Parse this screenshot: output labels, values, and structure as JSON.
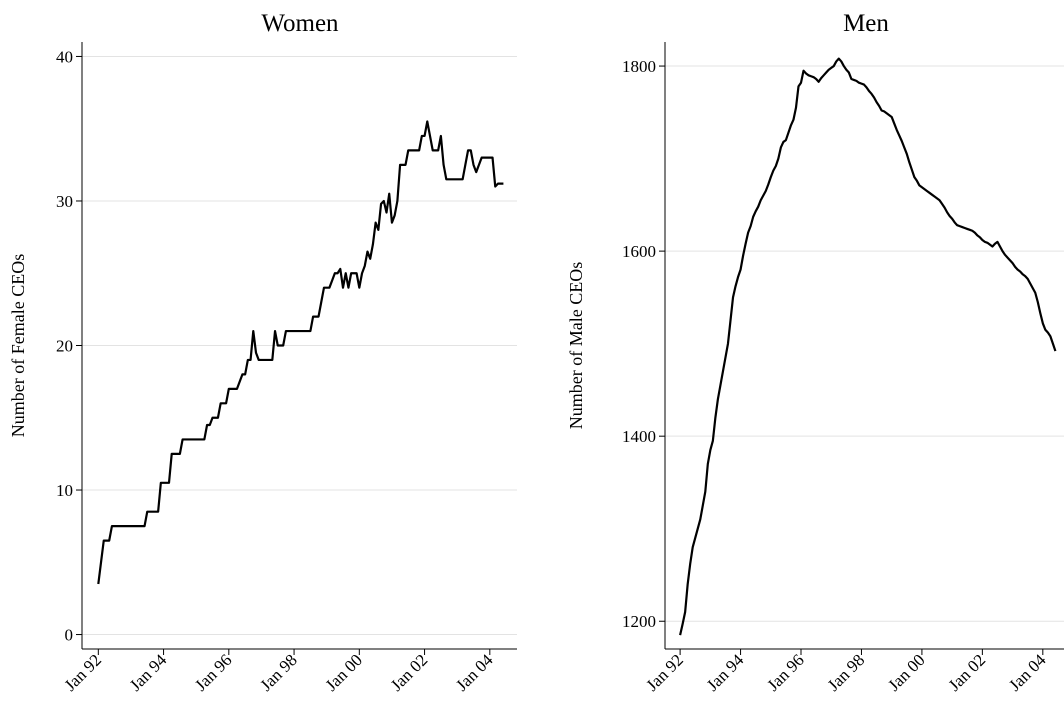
{
  "chart_data": [
    {
      "type": "line",
      "title": "Women",
      "y_label": "Number of Female CEOs",
      "x": [
        "1992-01",
        "1992-02",
        "1992-03",
        "1992-04",
        "1992-05",
        "1992-06",
        "1992-07",
        "1992-08",
        "1992-09",
        "1992-10",
        "1992-11",
        "1992-12",
        "1993-01",
        "1993-02",
        "1993-03",
        "1993-04",
        "1993-05",
        "1993-06",
        "1993-07",
        "1993-08",
        "1993-09",
        "1993-10",
        "1993-11",
        "1993-12",
        "1994-01",
        "1994-02",
        "1994-03",
        "1994-04",
        "1994-05",
        "1994-06",
        "1994-07",
        "1994-08",
        "1994-09",
        "1994-10",
        "1994-11",
        "1994-12",
        "1995-01",
        "1995-02",
        "1995-03",
        "1995-04",
        "1995-05",
        "1995-06",
        "1995-07",
        "1995-08",
        "1995-09",
        "1995-10",
        "1995-11",
        "1995-12",
        "1996-01",
        "1996-02",
        "1996-03",
        "1996-04",
        "1996-05",
        "1996-06",
        "1996-07",
        "1996-08",
        "1996-09",
        "1996-10",
        "1996-11",
        "1996-12",
        "1997-01",
        "1997-02",
        "1997-03",
        "1997-04",
        "1997-05",
        "1997-06",
        "1997-07",
        "1997-08",
        "1997-09",
        "1997-10",
        "1997-11",
        "1997-12",
        "1998-01",
        "1998-02",
        "1998-03",
        "1998-04",
        "1998-05",
        "1998-06",
        "1998-07",
        "1998-08",
        "1998-09",
        "1998-10",
        "1998-11",
        "1998-12",
        "1999-01",
        "1999-02",
        "1999-03",
        "1999-04",
        "1999-05",
        "1999-06",
        "1999-07",
        "1999-08",
        "1999-09",
        "1999-10",
        "1999-11",
        "1999-12",
        "2000-01",
        "2000-02",
        "2000-03",
        "2000-04",
        "2000-05",
        "2000-06",
        "2000-07",
        "2000-08",
        "2000-09",
        "2000-10",
        "2000-11",
        "2000-12",
        "2001-01",
        "2001-02",
        "2001-03",
        "2001-04",
        "2001-05",
        "2001-06",
        "2001-07",
        "2001-08",
        "2001-09",
        "2001-10",
        "2001-11",
        "2001-12",
        "2002-01",
        "2002-02",
        "2002-03",
        "2002-04",
        "2002-05",
        "2002-06",
        "2002-07",
        "2002-08",
        "2002-09",
        "2002-10",
        "2002-11",
        "2002-12",
        "2003-01",
        "2003-02",
        "2003-03",
        "2003-04",
        "2003-05",
        "2003-06",
        "2003-07",
        "2003-08",
        "2003-09",
        "2003-10",
        "2003-11",
        "2003-12",
        "2004-01",
        "2004-02",
        "2004-03",
        "2004-04",
        "2004-05",
        "2004-06"
      ],
      "series": [
        {
          "name": "Women",
          "color": "#000000",
          "values": [
            3.5,
            5,
            6.5,
            6.5,
            6.5,
            7.5,
            7.5,
            7.5,
            7.5,
            7.5,
            7.5,
            7.5,
            7.5,
            7.5,
            7.5,
            7.5,
            7.5,
            7.5,
            8.5,
            8.5,
            8.5,
            8.5,
            8.5,
            10.5,
            10.5,
            10.5,
            10.5,
            12.5,
            12.5,
            12.5,
            12.5,
            13.5,
            13.5,
            13.5,
            13.5,
            13.5,
            13.5,
            13.5,
            13.5,
            13.5,
            14.5,
            14.5,
            15,
            15,
            15,
            16,
            16,
            16,
            17,
            17,
            17,
            17,
            17.5,
            18,
            18,
            19,
            19,
            21,
            19.5,
            19,
            19,
            19,
            19,
            19,
            19,
            21,
            20,
            20,
            20,
            21,
            21,
            21,
            21,
            21,
            21,
            21,
            21,
            21,
            21,
            22,
            22,
            22,
            23,
            24,
            24,
            24,
            24.5,
            25,
            25,
            25.3,
            24,
            25,
            24,
            25,
            25,
            25,
            24,
            25,
            25.5,
            26.5,
            26,
            27,
            28.5,
            28,
            29.8,
            30,
            29.2,
            30.5,
            28.5,
            29,
            30,
            32.5,
            32.5,
            32.5,
            33.5,
            33.5,
            33.5,
            33.5,
            33.5,
            34.5,
            34.5,
            35.5,
            34.5,
            33.5,
            33.5,
            33.5,
            34.5,
            32.5,
            31.5,
            31.5,
            31.5,
            31.5,
            31.5,
            31.5,
            31.5,
            32.5,
            33.5,
            33.5,
            32.5,
            32,
            32.5,
            33,
            33,
            33,
            33,
            33,
            31,
            31.2,
            31.2,
            31.2
          ]
        }
      ],
      "xlim": [
        "1991-07",
        "2004-11"
      ],
      "xticks": [
        {
          "value": "1992-01",
          "label": "Jan 92"
        },
        {
          "value": "1994-01",
          "label": "Jan 94"
        },
        {
          "value": "1996-01",
          "label": "Jan 96"
        },
        {
          "value": "1998-01",
          "label": "Jan 98"
        },
        {
          "value": "2000-01",
          "label": "Jan 00"
        },
        {
          "value": "2002-01",
          "label": "Jan 02"
        },
        {
          "value": "2004-01",
          "label": "Jan 04"
        }
      ],
      "ylim": [
        -1,
        41
      ],
      "yticks": [
        0,
        10,
        20,
        30,
        40
      ],
      "grid": true
    },
    {
      "type": "line",
      "title": "Men",
      "y_label": "Number of Male CEOs",
      "x": [
        "1992-01",
        "1992-02",
        "1992-03",
        "1992-04",
        "1992-05",
        "1992-06",
        "1992-07",
        "1992-08",
        "1992-09",
        "1992-10",
        "1992-11",
        "1992-12",
        "1993-01",
        "1993-02",
        "1993-03",
        "1993-04",
        "1993-05",
        "1993-06",
        "1993-07",
        "1993-08",
        "1993-09",
        "1993-10",
        "1993-11",
        "1993-12",
        "1994-01",
        "1994-02",
        "1994-03",
        "1994-04",
        "1994-05",
        "1994-06",
        "1994-07",
        "1994-08",
        "1994-09",
        "1994-10",
        "1994-11",
        "1994-12",
        "1995-01",
        "1995-02",
        "1995-03",
        "1995-04",
        "1995-05",
        "1995-06",
        "1995-07",
        "1995-08",
        "1995-09",
        "1995-10",
        "1995-11",
        "1995-12",
        "1996-01",
        "1996-02",
        "1996-03",
        "1996-04",
        "1996-05",
        "1996-06",
        "1996-07",
        "1996-08",
        "1996-09",
        "1996-10",
        "1996-11",
        "1996-12",
        "1997-01",
        "1997-02",
        "1997-03",
        "1997-04",
        "1997-05",
        "1997-06",
        "1997-07",
        "1997-08",
        "1997-09",
        "1997-10",
        "1997-11",
        "1997-12",
        "1998-01",
        "1998-02",
        "1998-03",
        "1998-04",
        "1998-05",
        "1998-06",
        "1998-07",
        "1998-08",
        "1998-09",
        "1998-10",
        "1998-11",
        "1998-12",
        "1999-01",
        "1999-02",
        "1999-03",
        "1999-04",
        "1999-05",
        "1999-06",
        "1999-07",
        "1999-08",
        "1999-09",
        "1999-10",
        "1999-11",
        "1999-12",
        "2000-01",
        "2000-02",
        "2000-03",
        "2000-04",
        "2000-05",
        "2000-06",
        "2000-07",
        "2000-08",
        "2000-09",
        "2000-10",
        "2000-11",
        "2000-12",
        "2001-01",
        "2001-02",
        "2001-03",
        "2001-04",
        "2001-05",
        "2001-06",
        "2001-07",
        "2001-08",
        "2001-09",
        "2001-10",
        "2001-11",
        "2001-12",
        "2002-01",
        "2002-02",
        "2002-03",
        "2002-04",
        "2002-05",
        "2002-06",
        "2002-07",
        "2002-08",
        "2002-09",
        "2002-10",
        "2002-11",
        "2002-12",
        "2003-01",
        "2003-02",
        "2003-03",
        "2003-04",
        "2003-05",
        "2003-06",
        "2003-07",
        "2003-08",
        "2003-09",
        "2003-10",
        "2003-11",
        "2003-12",
        "2004-01",
        "2004-02",
        "2004-03",
        "2004-04",
        "2004-05",
        "2004-06"
      ],
      "series": [
        {
          "name": "Men",
          "color": "#000000",
          "values": [
            1185,
            1197,
            1210,
            1240,
            1262,
            1280,
            1290,
            1300,
            1310,
            1325,
            1340,
            1370,
            1385,
            1395,
            1420,
            1440,
            1455,
            1470,
            1485,
            1500,
            1525,
            1550,
            1562,
            1572,
            1580,
            1595,
            1608,
            1620,
            1627,
            1637,
            1643,
            1648,
            1655,
            1660,
            1665,
            1672,
            1680,
            1687,
            1692,
            1700,
            1712,
            1718,
            1720,
            1728,
            1736,
            1742,
            1755,
            1778,
            1782,
            1795,
            1792,
            1790,
            1789,
            1788,
            1786,
            1783,
            1787,
            1790,
            1793,
            1796,
            1798,
            1800,
            1805,
            1808,
            1805,
            1800,
            1796,
            1793,
            1786,
            1785,
            1784,
            1782,
            1781,
            1780,
            1777,
            1773,
            1770,
            1766,
            1761,
            1757,
            1752,
            1751,
            1749,
            1747,
            1745,
            1738,
            1731,
            1725,
            1719,
            1712,
            1705,
            1696,
            1688,
            1680,
            1676,
            1671,
            1669,
            1667,
            1665,
            1663,
            1661,
            1659,
            1657,
            1655,
            1651,
            1647,
            1642,
            1638,
            1635,
            1631,
            1628,
            1627,
            1626,
            1625,
            1624,
            1623,
            1622,
            1620,
            1617,
            1615,
            1612,
            1610,
            1609,
            1607,
            1605,
            1608,
            1610,
            1605,
            1600,
            1596,
            1593,
            1590,
            1587,
            1583,
            1580,
            1578,
            1575,
            1573,
            1570,
            1565,
            1560,
            1555,
            1545,
            1533,
            1522,
            1515,
            1512,
            1508,
            1500,
            1492
          ]
        }
      ],
      "xlim": [
        "1991-07",
        "2004-11"
      ],
      "xticks": [
        {
          "value": "1992-01",
          "label": "Jan 92"
        },
        {
          "value": "1994-01",
          "label": "Jan 94"
        },
        {
          "value": "1996-01",
          "label": "Jan 96"
        },
        {
          "value": "1998-01",
          "label": "Jan 98"
        },
        {
          "value": "2000-01",
          "label": "Jan 00"
        },
        {
          "value": "2002-01",
          "label": "Jan 02"
        },
        {
          "value": "2004-01",
          "label": "Jan 04"
        }
      ],
      "ylim": [
        1170,
        1826
      ],
      "yticks": [
        1200,
        1400,
        1600,
        1800
      ],
      "grid": true
    }
  ]
}
